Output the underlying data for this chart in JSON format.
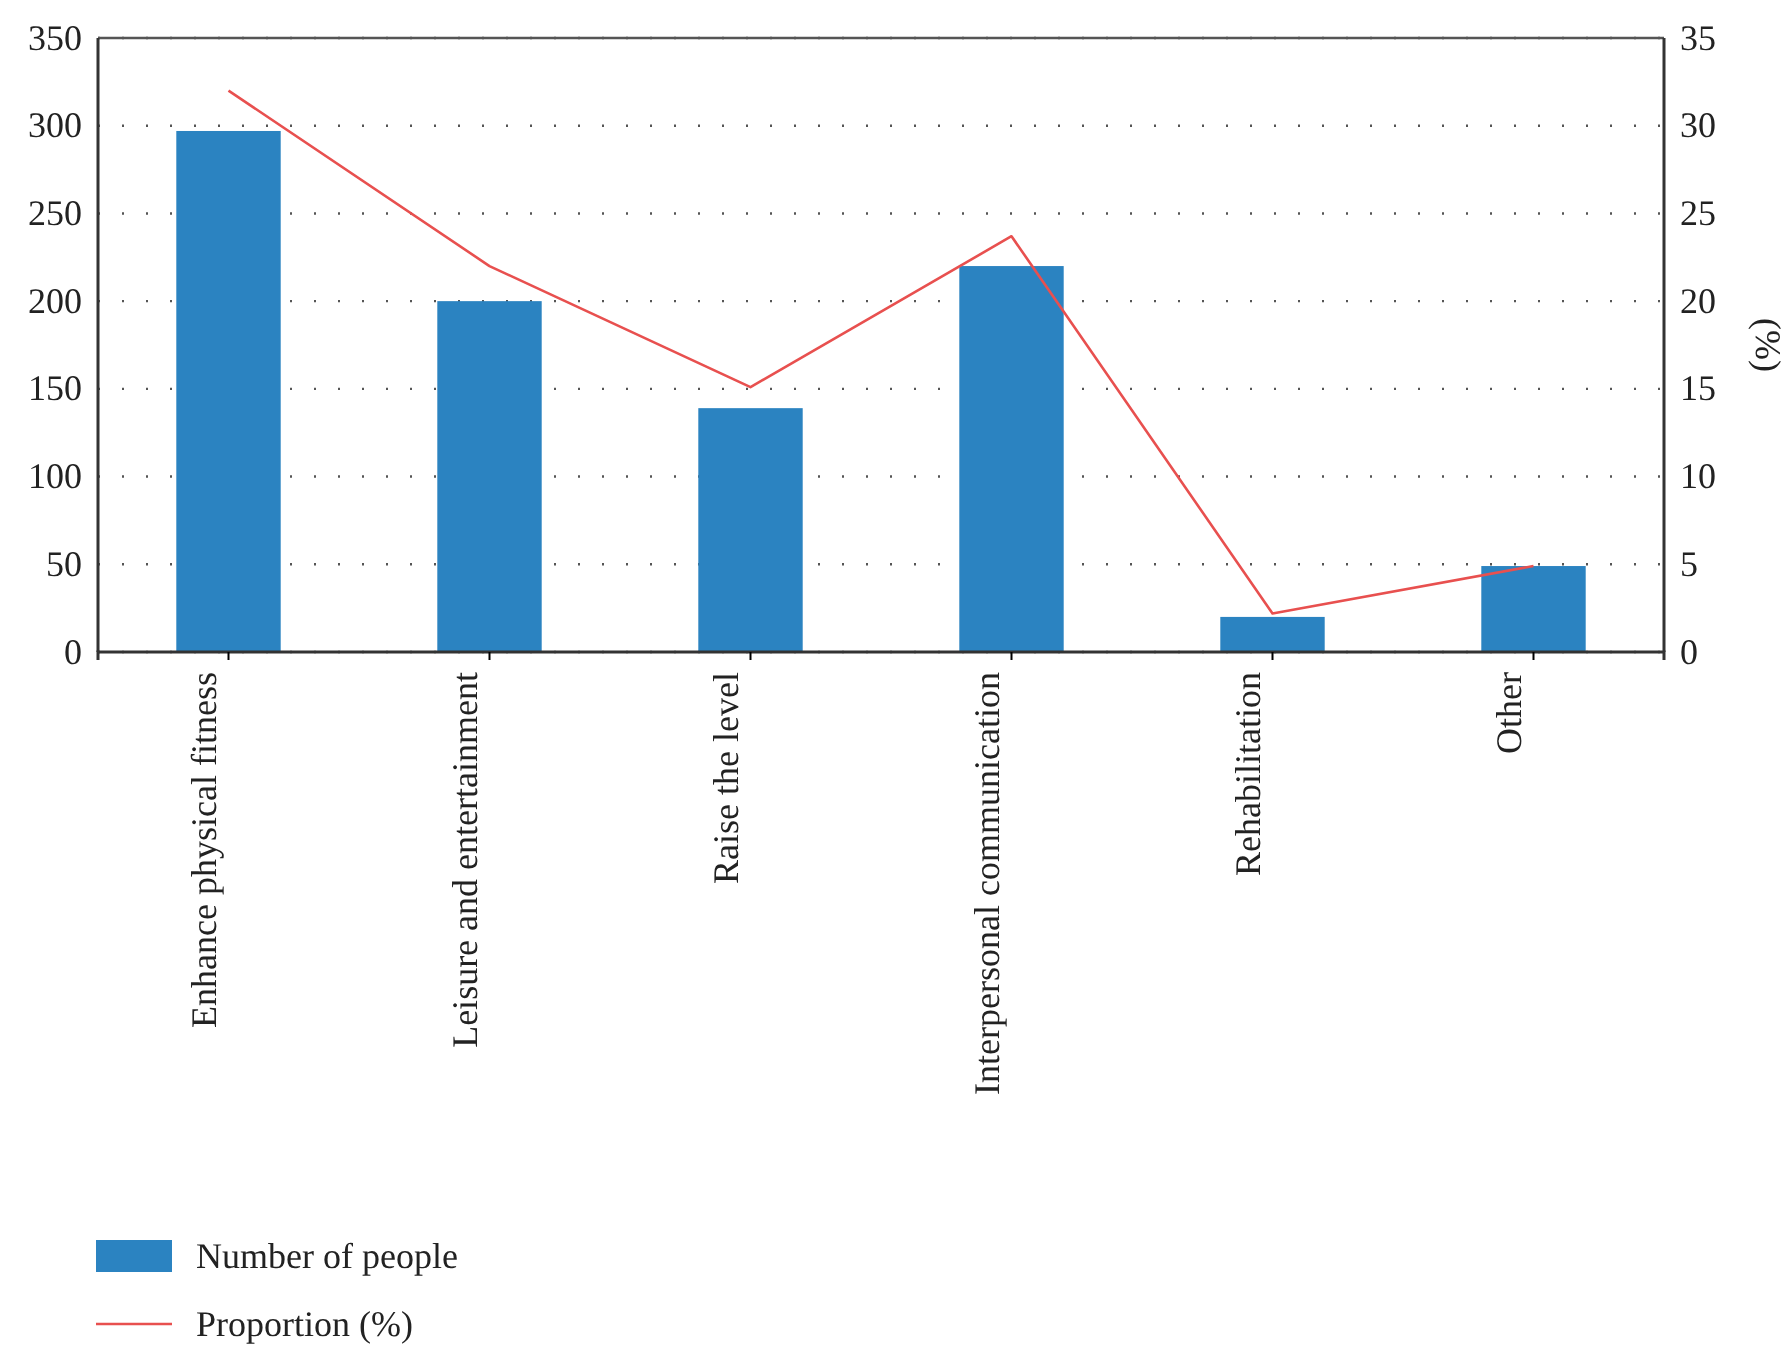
{
  "chart_data": {
    "type": "bar",
    "categories": [
      "Enhance physical fitness",
      "Leisure and entertainment",
      "Raise the level",
      "Interpersonal communication",
      "Rehabilitation",
      "Other"
    ],
    "series": [
      {
        "name": "Number of people",
        "color": "#2b83c1",
        "values": [
          297,
          200,
          139,
          220,
          20,
          49
        ]
      },
      {
        "name": "Proportion (%)",
        "type": "line",
        "axis": "y2",
        "color": "#e8504f",
        "values": [
          32.0,
          22.0,
          15.1,
          23.7,
          2.2,
          4.9
        ]
      }
    ],
    "ylim": [
      0,
      350
    ],
    "yticks": [
      0,
      50,
      100,
      150,
      200,
      250,
      300,
      350
    ],
    "y2lim": [
      0,
      35
    ],
    "y2ticks": [
      0,
      5,
      10,
      15,
      20,
      25,
      30,
      35
    ],
    "y2label": "(%)",
    "grid": "y",
    "legend": "bottom left",
    "marker": "none",
    "line_style": "solid"
  }
}
